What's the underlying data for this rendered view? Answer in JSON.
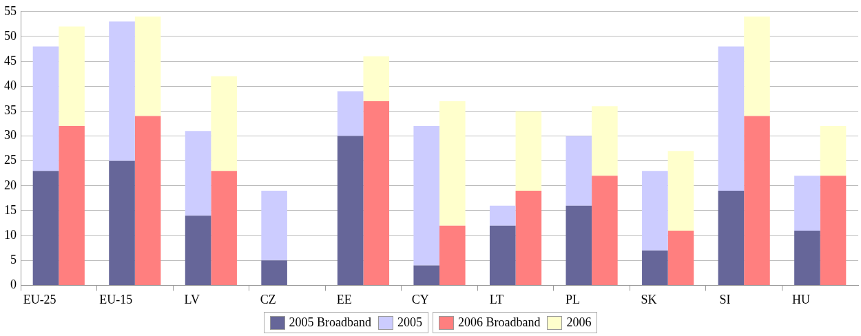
{
  "chart_data": {
    "type": "bar",
    "stacked": true,
    "categories": [
      "EU-25",
      null,
      "EU-15",
      null,
      "LV",
      null,
      "CZ",
      null,
      "EE",
      null,
      "CY",
      null,
      "LT",
      null,
      "PL",
      null,
      "SK",
      null,
      "SI",
      null,
      "HU",
      null
    ],
    "series": [
      {
        "name": "2005 Broadband",
        "color": "#666699",
        "values": [
          23,
          null,
          25,
          null,
          14,
          null,
          5,
          null,
          30,
          null,
          4,
          null,
          12,
          null,
          16,
          null,
          7,
          null,
          19,
          null,
          11,
          null
        ]
      },
      {
        "name": "2005",
        "color": "#ccccff",
        "values": [
          25,
          null,
          28,
          null,
          17,
          null,
          14,
          null,
          9,
          null,
          28,
          null,
          4,
          null,
          14,
          null,
          16,
          null,
          29,
          null,
          11,
          null
        ]
      },
      {
        "name": "2006 Broadband",
        "color": "#ff7f7f",
        "values": [
          null,
          32,
          null,
          34,
          null,
          23,
          null,
          0,
          null,
          37,
          null,
          12,
          null,
          19,
          null,
          22,
          null,
          11,
          null,
          34,
          null,
          22
        ]
      },
      {
        "name": "2006",
        "color": "#ffffcc",
        "values": [
          null,
          20,
          null,
          20,
          null,
          19,
          null,
          0,
          null,
          9,
          null,
          25,
          null,
          16,
          null,
          14,
          null,
          16,
          null,
          20,
          null,
          10
        ]
      }
    ],
    "ylim": [
      0,
      55
    ],
    "yticks": [
      0,
      5,
      10,
      15,
      20,
      25,
      30,
      35,
      40,
      45,
      50,
      55
    ],
    "grid": "y",
    "legend": "bottom"
  }
}
